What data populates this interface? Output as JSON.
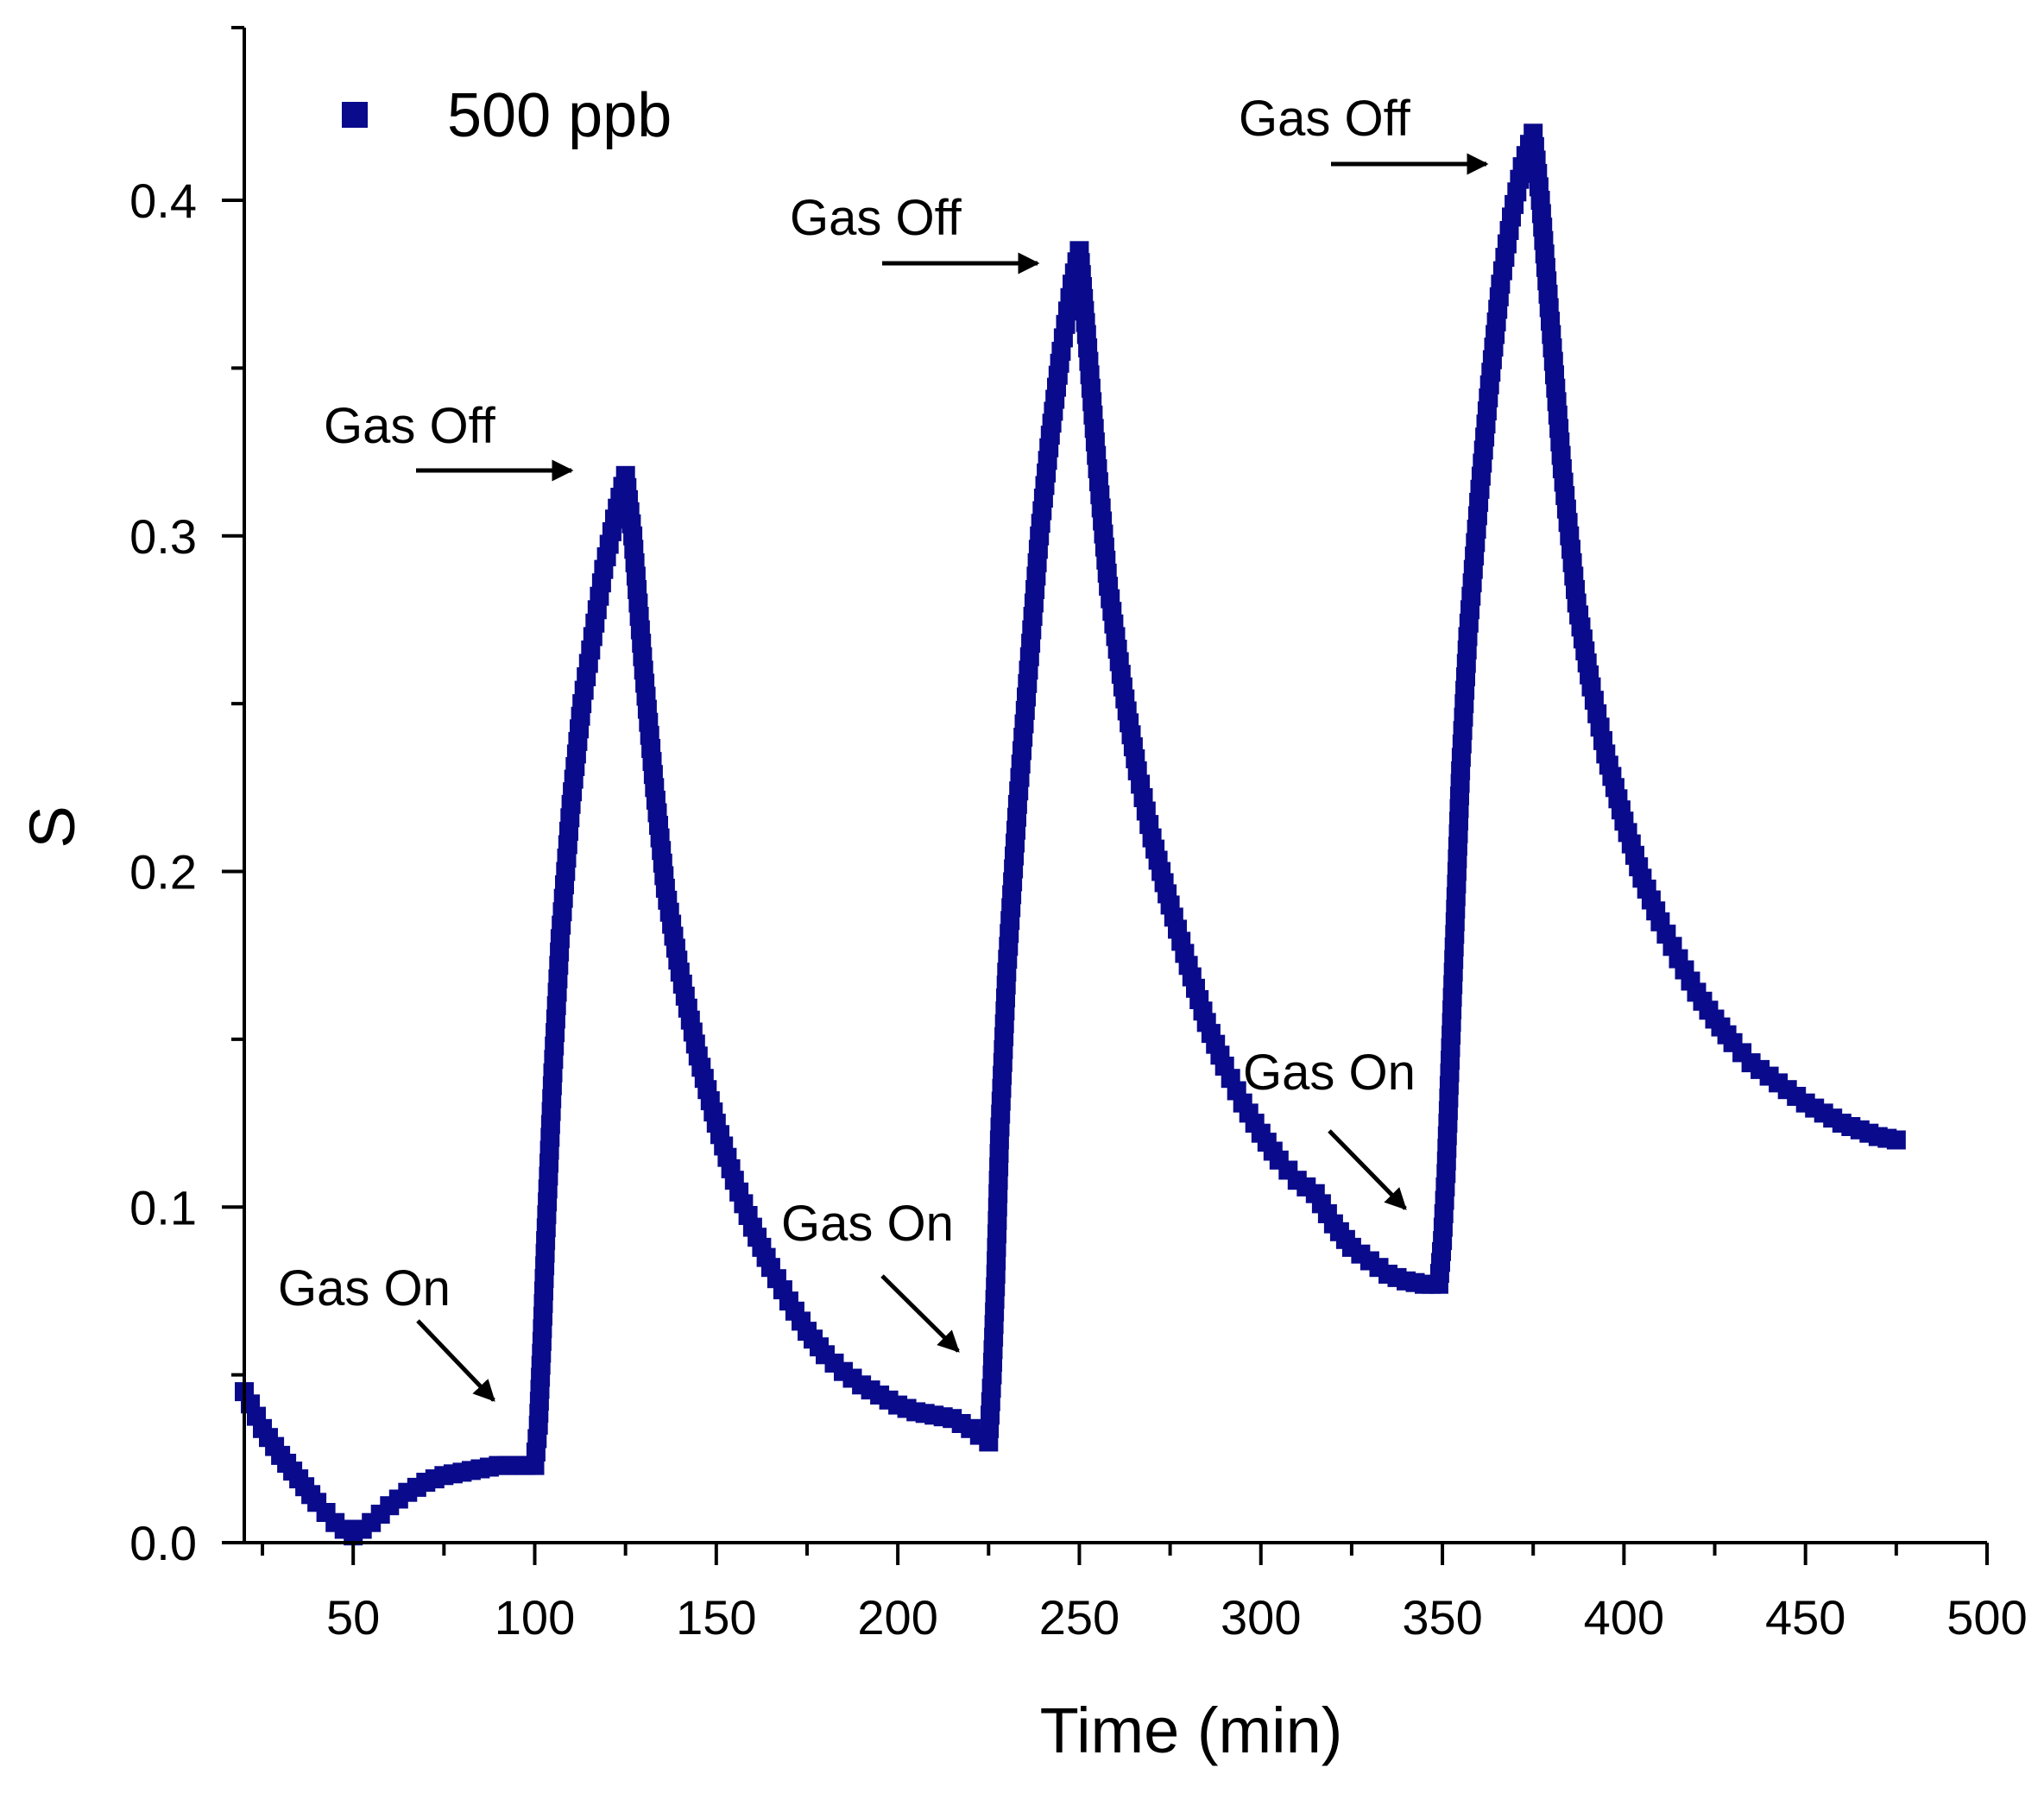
{
  "chart_data": {
    "type": "scatter",
    "title": "",
    "xlabel": "Time (min)",
    "ylabel": "S",
    "xlim": [
      20,
      500
    ],
    "ylim": [
      0,
      0.45
    ],
    "x_ticks": [
      50,
      100,
      150,
      200,
      250,
      300,
      350,
      400,
      450,
      500
    ],
    "x_tick_labels": [
      "50",
      "100",
      "150",
      "200",
      "250",
      "300",
      "350",
      "400",
      "450",
      "500"
    ],
    "y_ticks": [
      0.0,
      0.1,
      0.2,
      0.3,
      0.4
    ],
    "y_tick_labels": [
      "0.0",
      "0.1",
      "0.2",
      "0.3",
      "0.4"
    ],
    "grid": false,
    "legend": {
      "position": "top-left",
      "entries": [
        "500 ppb"
      ]
    },
    "color": "#0a0a8c",
    "series": [
      {
        "name": "500 ppb",
        "points": [
          [
            20,
            0.045
          ],
          [
            25,
            0.034
          ],
          [
            30,
            0.026
          ],
          [
            35,
            0.019
          ],
          [
            40,
            0.012
          ],
          [
            45,
            0.006
          ],
          [
            50,
            0.002
          ],
          [
            55,
            0.006
          ],
          [
            60,
            0.011
          ],
          [
            65,
            0.015
          ],
          [
            70,
            0.018
          ],
          [
            75,
            0.02
          ],
          [
            80,
            0.021
          ],
          [
            85,
            0.022
          ],
          [
            90,
            0.023
          ],
          [
            95,
            0.023
          ],
          [
            100,
            0.023
          ],
          [
            101,
            0.035
          ],
          [
            102,
            0.06
          ],
          [
            103,
            0.09
          ],
          [
            105,
            0.14
          ],
          [
            107,
            0.18
          ],
          [
            110,
            0.22
          ],
          [
            113,
            0.25
          ],
          [
            116,
            0.27
          ],
          [
            119,
            0.29
          ],
          [
            122,
            0.305
          ],
          [
            125,
            0.318
          ],
          [
            127,
            0.3
          ],
          [
            130,
            0.26
          ],
          [
            133,
            0.225
          ],
          [
            136,
            0.195
          ],
          [
            140,
            0.17
          ],
          [
            145,
            0.145
          ],
          [
            150,
            0.125
          ],
          [
            155,
            0.108
          ],
          [
            160,
            0.094
          ],
          [
            165,
            0.082
          ],
          [
            170,
            0.072
          ],
          [
            175,
            0.063
          ],
          [
            180,
            0.056
          ],
          [
            185,
            0.051
          ],
          [
            190,
            0.047
          ],
          [
            195,
            0.044
          ],
          [
            200,
            0.041
          ],
          [
            205,
            0.039
          ],
          [
            210,
            0.038
          ],
          [
            215,
            0.037
          ],
          [
            220,
            0.034
          ],
          [
            225,
            0.03
          ],
          [
            226,
            0.05
          ],
          [
            227,
            0.08
          ],
          [
            228,
            0.12
          ],
          [
            230,
            0.17
          ],
          [
            233,
            0.22
          ],
          [
            236,
            0.26
          ],
          [
            239,
            0.3
          ],
          [
            242,
            0.33
          ],
          [
            245,
            0.355
          ],
          [
            248,
            0.375
          ],
          [
            250,
            0.385
          ],
          [
            252,
            0.36
          ],
          [
            255,
            0.32
          ],
          [
            258,
            0.285
          ],
          [
            262,
            0.255
          ],
          [
            266,
            0.23
          ],
          [
            270,
            0.21
          ],
          [
            275,
            0.19
          ],
          [
            280,
            0.172
          ],
          [
            285,
            0.155
          ],
          [
            290,
            0.142
          ],
          [
            295,
            0.131
          ],
          [
            300,
            0.122
          ],
          [
            305,
            0.114
          ],
          [
            310,
            0.108
          ],
          [
            315,
            0.104
          ],
          [
            320,
            0.095
          ],
          [
            325,
            0.088
          ],
          [
            330,
            0.084
          ],
          [
            335,
            0.08
          ],
          [
            340,
            0.078
          ],
          [
            345,
            0.077
          ],
          [
            349,
            0.077
          ],
          [
            350,
            0.09
          ],
          [
            351,
            0.11
          ],
          [
            352,
            0.14
          ],
          [
            353,
            0.17
          ],
          [
            354,
            0.2
          ],
          [
            355,
            0.23
          ],
          [
            357,
            0.27
          ],
          [
            360,
            0.31
          ],
          [
            363,
            0.345
          ],
          [
            366,
            0.375
          ],
          [
            369,
            0.395
          ],
          [
            372,
            0.41
          ],
          [
            375,
            0.42
          ],
          [
            377,
            0.4
          ],
          [
            380,
            0.36
          ],
          [
            383,
            0.32
          ],
          [
            387,
            0.28
          ],
          [
            391,
            0.255
          ],
          [
            395,
            0.235
          ],
          [
            400,
            0.215
          ],
          [
            405,
            0.198
          ],
          [
            410,
            0.185
          ],
          [
            415,
            0.174
          ],
          [
            420,
            0.164
          ],
          [
            425,
            0.156
          ],
          [
            430,
            0.149
          ],
          [
            435,
            0.143
          ],
          [
            440,
            0.139
          ],
          [
            445,
            0.135
          ],
          [
            450,
            0.131
          ],
          [
            455,
            0.128
          ],
          [
            460,
            0.125
          ],
          [
            465,
            0.123
          ],
          [
            470,
            0.121
          ],
          [
            475,
            0.12
          ]
        ]
      }
    ],
    "annotations": [
      {
        "text": "Gas Off",
        "target": [
          125,
          0.32
        ]
      },
      {
        "text": "Gas Off",
        "target": [
          248,
          0.38
        ]
      },
      {
        "text": "Gas Off",
        "target": [
          372,
          0.41
        ]
      },
      {
        "text": "Gas On",
        "target": [
          97,
          0.04
        ]
      },
      {
        "text": "Gas On",
        "target": [
          221,
          0.055
        ]
      },
      {
        "text": "Gas On",
        "target": [
          343,
          0.098
        ]
      }
    ]
  }
}
